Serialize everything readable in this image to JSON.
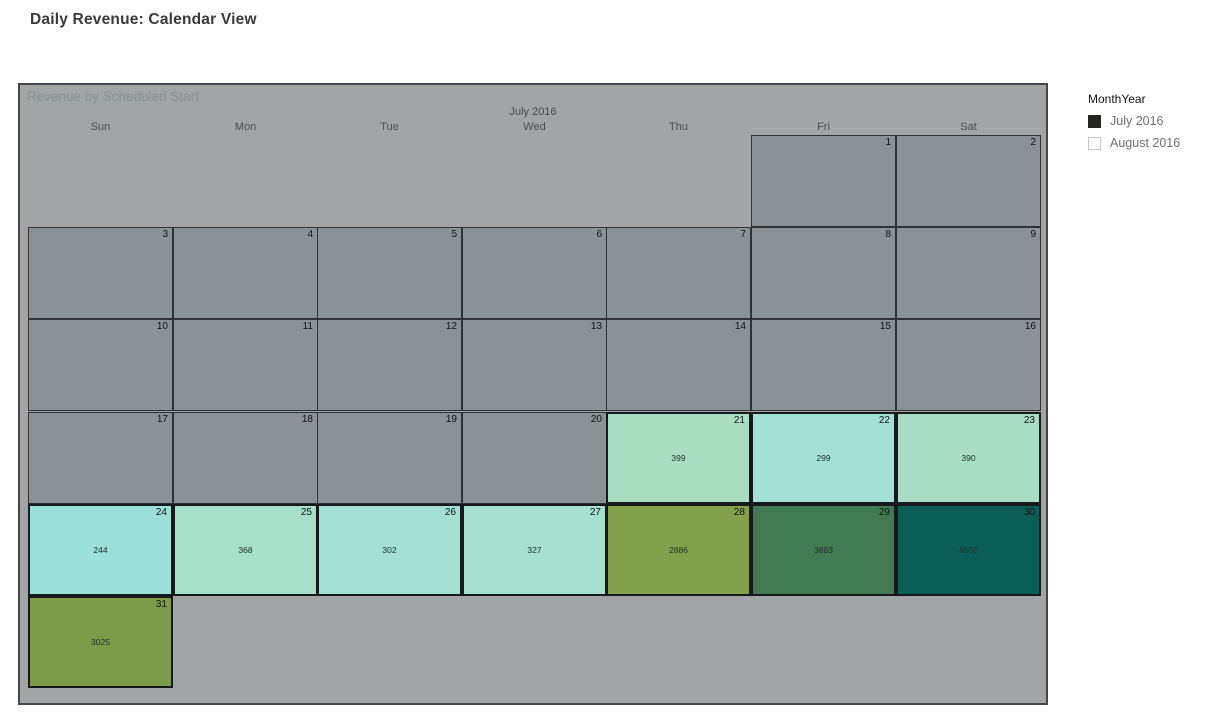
{
  "page_title": "Daily Revenue: Calendar View",
  "legend": {
    "title": "MonthYear",
    "items": [
      {
        "label": "July 2016",
        "swatch_color": "#252423",
        "swatch_style": "filled"
      },
      {
        "label": "August 2016",
        "swatch_color": "#FFFFFF",
        "swatch_style": "outline"
      }
    ]
  },
  "chart_data": {
    "type": "heatmap",
    "subtype": "calendar",
    "title": "Revenue by Scheduled Start",
    "month_label": "July 2016",
    "weekday_headers": [
      "Sun",
      "Mon",
      "Tue",
      "Wed",
      "Thu",
      "Fri",
      "Sat"
    ],
    "value_field": "Revenue",
    "cells": [
      {
        "day": 1,
        "row": 0,
        "col": 5,
        "value": null,
        "fill": "#8B9296"
      },
      {
        "day": 2,
        "row": 0,
        "col": 6,
        "value": null,
        "fill": "#8B9296"
      },
      {
        "day": 3,
        "row": 1,
        "col": 0,
        "value": null,
        "fill": "#8B9296"
      },
      {
        "day": 4,
        "row": 1,
        "col": 1,
        "value": null,
        "fill": "#8B9296"
      },
      {
        "day": 5,
        "row": 1,
        "col": 2,
        "value": null,
        "fill": "#8B9296"
      },
      {
        "day": 6,
        "row": 1,
        "col": 3,
        "value": null,
        "fill": "#8B9296"
      },
      {
        "day": 7,
        "row": 1,
        "col": 4,
        "value": null,
        "fill": "#8B9296"
      },
      {
        "day": 8,
        "row": 1,
        "col": 5,
        "value": null,
        "fill": "#8B9296"
      },
      {
        "day": 9,
        "row": 1,
        "col": 6,
        "value": null,
        "fill": "#8B9296"
      },
      {
        "day": 10,
        "row": 2,
        "col": 0,
        "value": null,
        "fill": "#8B9296"
      },
      {
        "day": 11,
        "row": 2,
        "col": 1,
        "value": null,
        "fill": "#8B9296"
      },
      {
        "day": 12,
        "row": 2,
        "col": 2,
        "value": null,
        "fill": "#8B9296"
      },
      {
        "day": 13,
        "row": 2,
        "col": 3,
        "value": null,
        "fill": "#8B9296"
      },
      {
        "day": 14,
        "row": 2,
        "col": 4,
        "value": null,
        "fill": "#8B9296"
      },
      {
        "day": 15,
        "row": 2,
        "col": 5,
        "value": null,
        "fill": "#8B9296"
      },
      {
        "day": 16,
        "row": 2,
        "col": 6,
        "value": null,
        "fill": "#8B9296"
      },
      {
        "day": 17,
        "row": 3,
        "col": 0,
        "value": null,
        "fill": "#8B9296"
      },
      {
        "day": 18,
        "row": 3,
        "col": 1,
        "value": null,
        "fill": "#8B9296"
      },
      {
        "day": 19,
        "row": 3,
        "col": 2,
        "value": null,
        "fill": "#8B9296"
      },
      {
        "day": 20,
        "row": 3,
        "col": 3,
        "value": null,
        "fill": "#8B9296"
      },
      {
        "day": 21,
        "row": 3,
        "col": 4,
        "value": 399,
        "fill": "#A9DEC3"
      },
      {
        "day": 22,
        "row": 3,
        "col": 5,
        "value": 299,
        "fill": "#A3E1D5"
      },
      {
        "day": 23,
        "row": 3,
        "col": 6,
        "value": 390,
        "fill": "#A9DEC4"
      },
      {
        "day": 24,
        "row": 4,
        "col": 0,
        "value": 244,
        "fill": "#9CE1D8"
      },
      {
        "day": 25,
        "row": 4,
        "col": 1,
        "value": 368,
        "fill": "#A8DFC9"
      },
      {
        "day": 26,
        "row": 4,
        "col": 2,
        "value": 302,
        "fill": "#A3E0D4"
      },
      {
        "day": 27,
        "row": 4,
        "col": 3,
        "value": 327,
        "fill": "#A6E0D0"
      },
      {
        "day": 28,
        "row": 4,
        "col": 4,
        "value": 2886,
        "fill": "#84A04B"
      },
      {
        "day": 29,
        "row": 4,
        "col": 5,
        "value": 3883,
        "fill": "#427B52"
      },
      {
        "day": 30,
        "row": 4,
        "col": 6,
        "value": 4502,
        "fill": "#0B5D57"
      },
      {
        "day": 31,
        "row": 5,
        "col": 0,
        "value": 3025,
        "fill": "#7D9A49"
      }
    ],
    "colors": {
      "panel_background": "#A1A5A5",
      "empty_cell_fill": "#8B9296",
      "grid_border": "#2E3236"
    }
  }
}
